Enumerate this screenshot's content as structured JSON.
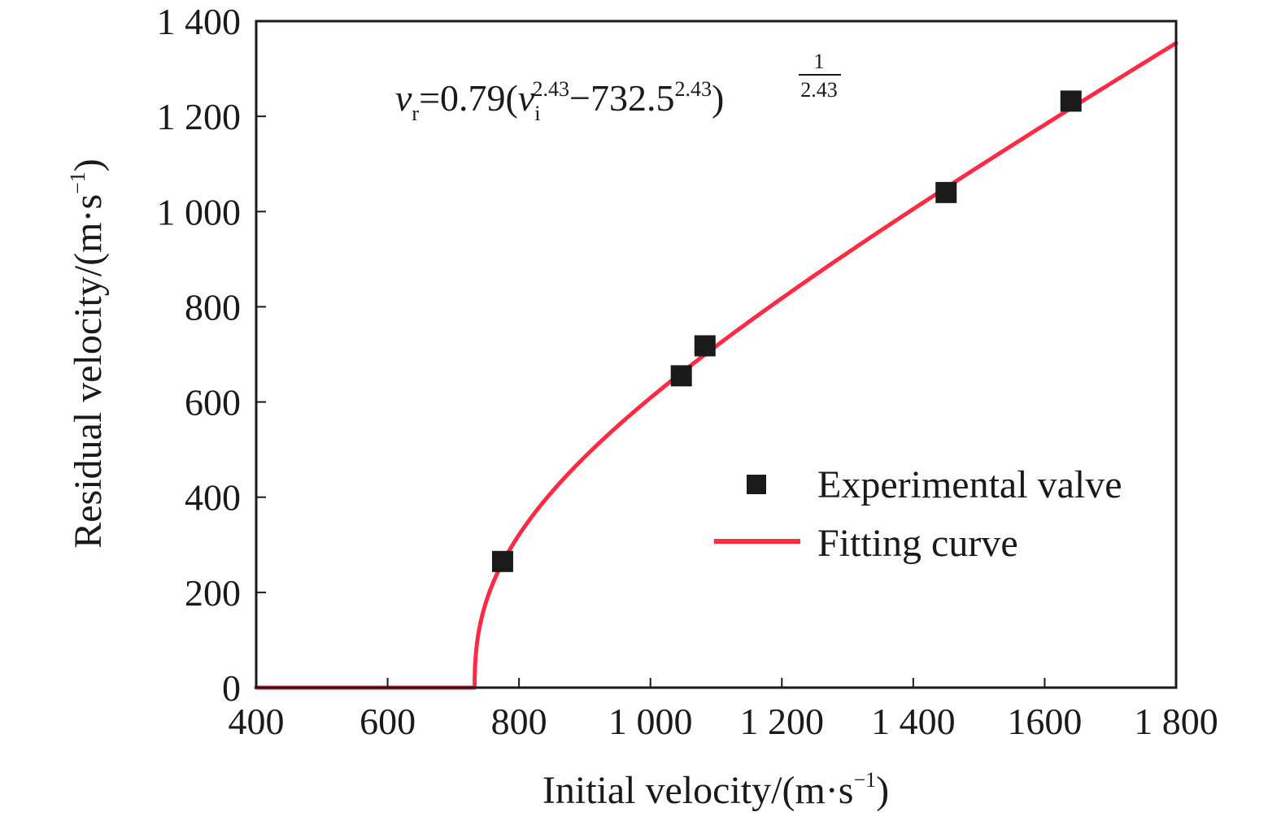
{
  "chart_data": {
    "type": "scatter",
    "xlabel": "Initial velocity/(m·s",
    "xlabel_exp": "−1",
    "xlabel_close": ")",
    "ylabel": "Residual velocity/(m·s",
    "ylabel_exp": "−1",
    "ylabel_close": ")",
    "xlim": [
      400,
      1800
    ],
    "ylim": [
      0,
      1400
    ],
    "grid": false,
    "legend_position": "right-middle",
    "x_ticks": [
      {
        "value": 400,
        "label": "400"
      },
      {
        "value": 600,
        "label": "600"
      },
      {
        "value": 800,
        "label": "800"
      },
      {
        "value": 1000,
        "label": "1 000"
      },
      {
        "value": 1200,
        "label": "1 200"
      },
      {
        "value": 1400,
        "label": "1 400"
      },
      {
        "value": 1600,
        "label": "1600"
      },
      {
        "value": 1800,
        "label": "1 800"
      }
    ],
    "y_ticks": [
      {
        "value": 0,
        "label": "0"
      },
      {
        "value": 200,
        "label": "200"
      },
      {
        "value": 400,
        "label": "400"
      },
      {
        "value": 600,
        "label": "600"
      },
      {
        "value": 800,
        "label": "800"
      },
      {
        "value": 1000,
        "label": "1 000"
      },
      {
        "value": 1200,
        "label": "1 200"
      },
      {
        "value": 1400,
        "label": "1 400"
      }
    ],
    "series": [
      {
        "name": "Experimental valve",
        "kind": "scatter",
        "marker": "square",
        "color": "#1a1a1a",
        "x": [
          775,
          1047,
          1083,
          1450,
          1640
        ],
        "y": [
          265,
          655,
          718,
          1040,
          1232
        ]
      },
      {
        "name": "Fitting curve",
        "kind": "line",
        "color": "#ff2a44",
        "function": {
          "a": 0.79,
          "p": 2.43,
          "v_bl": 732.5
        }
      }
    ],
    "equation": {
      "v": "v",
      "sub_r": "r",
      "eq_main": "=0.79(",
      "v2": "v",
      "sub_i": "i",
      "sup1": "2.43",
      "minus": "−732.5",
      "sup2": "2.43",
      "close": ")",
      "frac_num": "1",
      "frac_den": "2.43"
    }
  }
}
